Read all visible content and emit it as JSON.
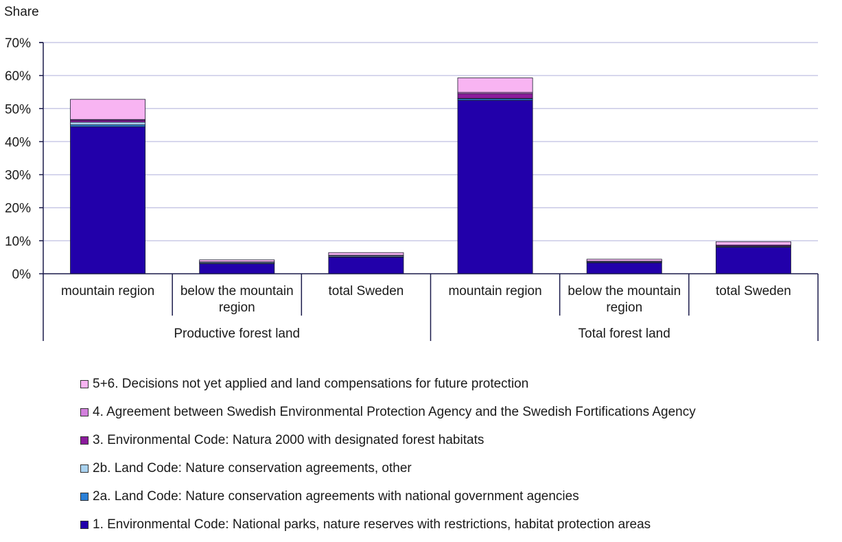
{
  "chart_data": {
    "type": "bar",
    "stacked": true,
    "ylabel": "Share",
    "ylim": [
      0,
      70
    ],
    "yticks": [
      "0%",
      "10%",
      "20%",
      "30%",
      "40%",
      "50%",
      "60%",
      "70%"
    ],
    "grid": true,
    "legend_position": "bottom",
    "groups": [
      {
        "label": "Productive forest land",
        "categories": [
          "mountain region",
          "below the mountain region",
          "total Sweden"
        ]
      },
      {
        "label": "Total forest land",
        "categories": [
          "mountain region",
          "below the mountain region",
          "total Sweden"
        ]
      }
    ],
    "series": [
      {
        "name": "1. Environmental Code: National parks, nature reserves with restrictions, habitat protection areas",
        "color": "#2200aa",
        "values": [
          44.5,
          3.0,
          5.0,
          52.5,
          3.3,
          8.0
        ]
      },
      {
        "name": "2a. Land Code: Nature conservation agreements with national government agencies",
        "color": "#2a7fd6",
        "values": [
          0.6,
          0.2,
          0.2,
          0.5,
          0.2,
          0.2
        ]
      },
      {
        "name": "2b. Land Code: Nature conservation agreements, other",
        "color": "#a9d2ef",
        "values": [
          0.8,
          0.3,
          0.3,
          0.1,
          0.2,
          0.2
        ]
      },
      {
        "name": "3. Environmental Code: Natura 2000 with designated forest habitats",
        "color": "#8b1b9c",
        "values": [
          0.6,
          0.1,
          0.1,
          1.4,
          0.1,
          0.3
        ]
      },
      {
        "name": "4. Agreement between Swedish Environmental Protection Agency and the Swedish Fortifications Agency",
        "color": "#d27fdc",
        "values": [
          0.2,
          0.0,
          0.0,
          0.4,
          0.0,
          0.0
        ]
      },
      {
        "name": "5+6. Decisions not yet applied and land compensations for future protection",
        "color": "#f8b4f2",
        "values": [
          6.1,
          0.6,
          0.8,
          4.4,
          0.6,
          1.0
        ]
      }
    ]
  }
}
